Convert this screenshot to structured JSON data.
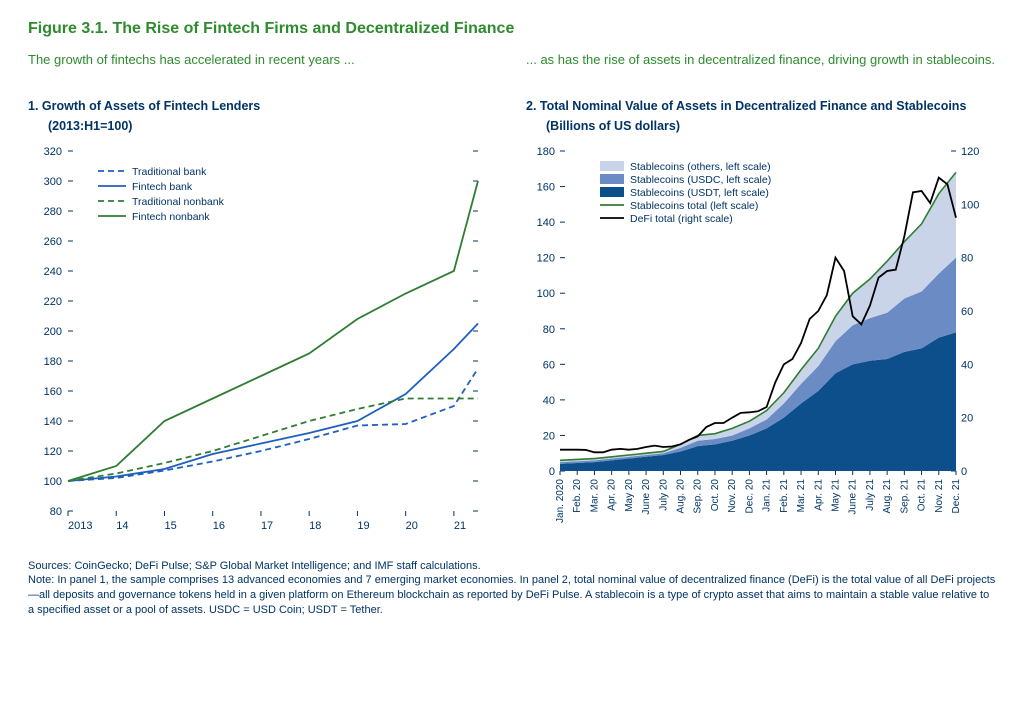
{
  "figure_title": "Figure 3.1. The Rise of Fintech Firms and Decentralized Finance",
  "panel1": {
    "subtitle": "The growth of fintechs has accelerated in recent years ...",
    "title_l1": "1. Growth of Assets of Fintech Lenders",
    "title_l2": "(2013:H1=100)",
    "type": "line",
    "x_categories": [
      "2013",
      "14",
      "15",
      "16",
      "17",
      "18",
      "19",
      "20",
      "21"
    ],
    "x_positions": [
      0,
      1,
      2,
      3,
      4,
      5,
      6,
      7,
      8,
      8.5
    ],
    "ylim": [
      80,
      320
    ],
    "ytick_step": 20,
    "colors": {
      "traditional_bank": "#1f5fbf",
      "fintech_bank": "#1f5fbf",
      "traditional_nonbank": "#2e7d32",
      "fintech_nonbank": "#2e7d32",
      "tick": "#003366"
    },
    "line_width": 1.8,
    "dash": "6,4",
    "series": {
      "traditional_bank": {
        "label": "Traditional bank",
        "style": "dashed",
        "color_key": "traditional_bank",
        "values": [
          100,
          102,
          107,
          113,
          120,
          128,
          137,
          138,
          150,
          175
        ]
      },
      "fintech_bank": {
        "label": "Fintech bank",
        "style": "solid",
        "color_key": "fintech_bank",
        "values": [
          100,
          103,
          108,
          118,
          125,
          132,
          140,
          158,
          188,
          205
        ]
      },
      "traditional_nonbank": {
        "label": "Traditional nonbank",
        "style": "dashed",
        "color_key": "traditional_nonbank",
        "values": [
          100,
          105,
          112,
          120,
          130,
          140,
          148,
          155,
          155,
          155
        ]
      },
      "fintech_nonbank": {
        "label": "Fintech nonbank",
        "style": "solid",
        "color_key": "fintech_nonbank",
        "values": [
          100,
          110,
          140,
          155,
          170,
          185,
          208,
          225,
          240,
          300
        ]
      }
    },
    "legend_order": [
      "traditional_bank",
      "fintech_bank",
      "traditional_nonbank",
      "fintech_nonbank"
    ]
  },
  "panel2": {
    "subtitle": "... as has the rise of assets in decentralized finance, driving growth in stablecoins.",
    "title_l1": "2. Total Nominal Value of Assets in Decentralized Finance and Stablecoins",
    "title_l2": "(Billions of US dollars)",
    "type": "area+line",
    "x_labels": [
      "Jan. 2020",
      "Feb. 20",
      "Mar. 20",
      "Apr. 20",
      "May 20",
      "June 20",
      "July 20",
      "Aug. 20",
      "Sep. 20",
      "Oct. 20",
      "Nov. 20",
      "Dec. 20",
      "Jan. 21",
      "Feb. 21",
      "Mar. 21",
      "Apr. 21",
      "May 21",
      "June 21",
      "July 21",
      "Aug. 21",
      "Sep. 21",
      "Oct. 21",
      "Nov. 21",
      "Dec. 21"
    ],
    "ylim_left": [
      0,
      180
    ],
    "ytick_left_step": 20,
    "ylim_right": [
      0,
      120
    ],
    "ytick_right_step": 20,
    "colors": {
      "others": "#c9d4e8",
      "usdc": "#6b8bc4",
      "usdt": "#0d4f8b",
      "total": "#2e7d32",
      "defi": "#000000",
      "tick": "#003366"
    },
    "area_series": {
      "usdt": {
        "label": "Stablecoins (USDT, left scale)",
        "color_key": "usdt",
        "values": [
          4,
          4.5,
          5,
          6,
          7,
          8,
          9,
          11,
          14,
          15,
          17,
          20,
          24,
          30,
          38,
          45,
          55,
          60,
          62,
          63,
          67,
          69,
          75,
          78
        ]
      },
      "usdc": {
        "label": "Stablecoins (USDC, left scale)",
        "color_key": "usdc",
        "values": [
          1,
          1,
          1,
          1,
          1,
          1,
          1,
          2,
          3,
          3,
          3,
          4,
          5,
          8,
          11,
          14,
          18,
          22,
          24,
          26,
          30,
          32,
          36,
          42
        ]
      },
      "others": {
        "label": "Stablecoins (others, left scale)",
        "color_key": "others",
        "values": [
          1,
          1,
          1,
          1,
          1,
          1,
          1,
          2,
          3,
          3,
          4,
          4,
          5,
          6,
          8,
          10,
          14,
          18,
          22,
          29,
          32,
          38,
          45,
          48
        ]
      }
    },
    "area_order": [
      "usdt",
      "usdc",
      "others"
    ],
    "total_line": {
      "label": "Stablecoins total (left scale)",
      "color_key": "total"
    },
    "defi_line": {
      "label": "DeFi total (right scale)",
      "color_key": "defi",
      "values": [
        8,
        8,
        7,
        8,
        8,
        9,
        9,
        10,
        13,
        18,
        20,
        22,
        24,
        40,
        48,
        60,
        80,
        58,
        62,
        75,
        88,
        105,
        110,
        95
      ],
      "jitter": [
        0,
        0.4,
        -0.5,
        0.3,
        -0.2,
        0.5,
        -0.3,
        0.2,
        1,
        -1,
        0.8,
        -0.6,
        1.2,
        -2,
        3,
        -4,
        6,
        -5,
        4,
        -6,
        8,
        -7,
        5,
        -3
      ]
    },
    "legend_order": [
      "others",
      "usdc",
      "usdt",
      "total",
      "defi"
    ]
  },
  "footer": {
    "sources": "Sources: CoinGecko; DeFi Pulse; S&P Global Market Intelligence; and IMF staff calculations.",
    "note": "Note: In panel 1, the sample comprises 13 advanced economies and 7 emerging market economies. In panel 2, total nominal value of decentralized finance (DeFi) is the total value of all DeFi projects—all deposits and governance tokens held in a given platform on Ethereum blockchain as reported by DeFi Pulse. A stablecoin is a type of crypto asset that aims to maintain a stable value relative to a specified asset or a pool of assets. USDC = USD Coin; USDT = Tether."
  }
}
